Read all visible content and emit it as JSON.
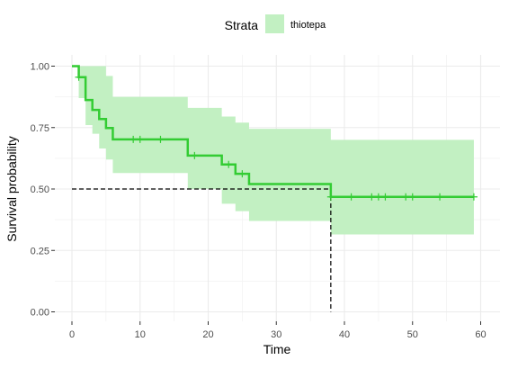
{
  "chart_data": {
    "type": "line",
    "subtype": "kaplan-meier",
    "xlabel": "Time",
    "ylabel": "Survival probability",
    "xlim": [
      0,
      60
    ],
    "ylim": [
      0,
      1
    ],
    "x_ticks": [
      0,
      10,
      20,
      30,
      40,
      50,
      60
    ],
    "y_ticks": [
      0,
      0.25,
      0.5,
      0.75,
      1
    ],
    "y_tick_labels": [
      "0.00",
      "0.25",
      "0.50",
      "0.75",
      "1.00"
    ],
    "grid": true,
    "legend": {
      "title": "Strata",
      "position": "top",
      "entries": [
        "thiotepa"
      ]
    },
    "series": [
      {
        "name": "thiotepa",
        "color": "#33cc33",
        "fill_color": "#c2f0c2",
        "steps": [
          {
            "time": 0,
            "surv": 1.0,
            "lower": 1.0,
            "upper": 1.0
          },
          {
            "time": 1,
            "surv": 0.955,
            "lower": 0.87,
            "upper": 1.0
          },
          {
            "time": 2,
            "surv": 0.862,
            "lower": 0.76,
            "upper": 1.0
          },
          {
            "time": 3,
            "surv": 0.822,
            "lower": 0.725,
            "upper": 1.0
          },
          {
            "time": 4,
            "surv": 0.785,
            "lower": 0.665,
            "upper": 1.0
          },
          {
            "time": 5,
            "surv": 0.748,
            "lower": 0.62,
            "upper": 0.96
          },
          {
            "time": 6,
            "surv": 0.702,
            "lower": 0.565,
            "upper": 0.875
          },
          {
            "time": 17,
            "surv": 0.636,
            "lower": 0.5,
            "upper": 0.83
          },
          {
            "time": 22,
            "surv": 0.6,
            "lower": 0.44,
            "upper": 0.795
          },
          {
            "time": 24,
            "surv": 0.562,
            "lower": 0.41,
            "upper": 0.77
          },
          {
            "time": 26,
            "surv": 0.52,
            "lower": 0.37,
            "upper": 0.745
          },
          {
            "time": 38,
            "surv": 0.468,
            "lower": 0.315,
            "upper": 0.7
          },
          {
            "time": 59,
            "surv": 0.468,
            "lower": 0.315,
            "upper": 0.7
          }
        ],
        "censored": [
          1,
          9,
          10,
          13,
          18,
          23,
          25,
          38,
          41,
          44,
          45,
          46,
          49,
          50,
          54,
          59
        ]
      }
    ],
    "median_survival": {
      "time": 38,
      "surv": 0.5
    }
  }
}
